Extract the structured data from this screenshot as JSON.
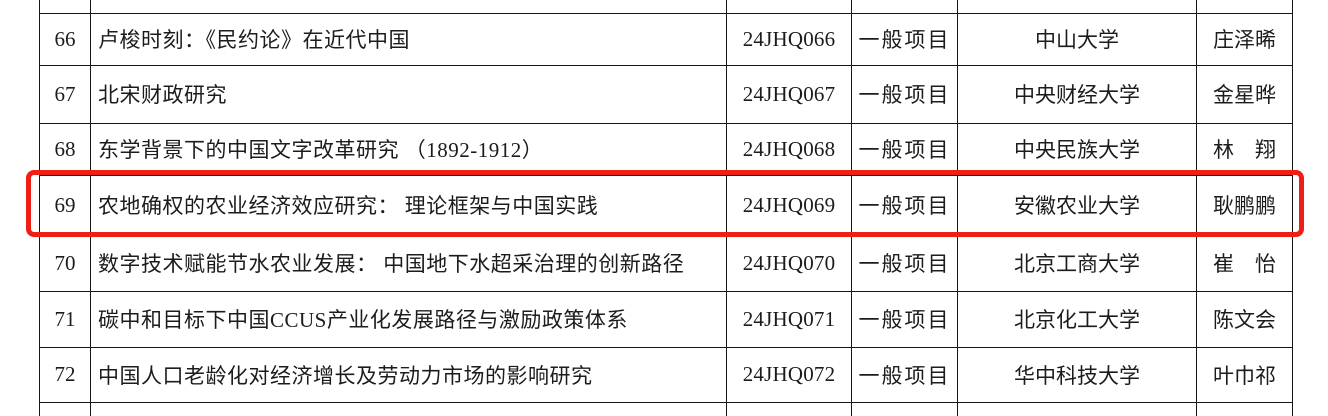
{
  "table": {
    "rows": [
      {
        "no": "66",
        "title": "卢梭时刻：《民约论》在近代中国",
        "code": "24JHQ066",
        "type": "一般项目",
        "university": "中山大学",
        "leader": "庄泽晞"
      },
      {
        "no": "67",
        "title": "北宋财政研究",
        "code": "24JHQ067",
        "type": "一般项目",
        "university": "中央财经大学",
        "leader": "金星晔"
      },
      {
        "no": "68",
        "title": "东学背景下的中国文字改革研究 （1892-1912）",
        "code": "24JHQ068",
        "type": "一般项目",
        "university": "中央民族大学",
        "leader": "林　翔"
      },
      {
        "no": "69",
        "title": "农地确权的农业经济效应研究： 理论框架与中国实践",
        "code": "24JHQ069",
        "type": "一般项目",
        "university": "安徽农业大学",
        "leader": "耿鹏鹏"
      },
      {
        "no": "70",
        "title": "数字技术赋能节水农业发展： 中国地下水超采治理的创新路径",
        "code": "24JHQ070",
        "type": "一般项目",
        "university": "北京工商大学",
        "leader": "崔　怡"
      },
      {
        "no": "71",
        "title": "碳中和目标下中国CCUS产业化发展路径与激励政策体系",
        "code": "24JHQ071",
        "type": "一般项目",
        "university": "北京化工大学",
        "leader": "陈文会"
      },
      {
        "no": "72",
        "title": "中国人口老龄化对经济增长及劳动力市场的影响研究",
        "code": "24JHQ072",
        "type": "一般项目",
        "university": "华中科技大学",
        "leader": "叶巾祁"
      }
    ],
    "highlighted_row_no": "69"
  },
  "colors": {
    "highlight_border": "#ee2015",
    "grid_line": "#161616",
    "text": "#1c1c1c",
    "background": "#ffffff"
  }
}
